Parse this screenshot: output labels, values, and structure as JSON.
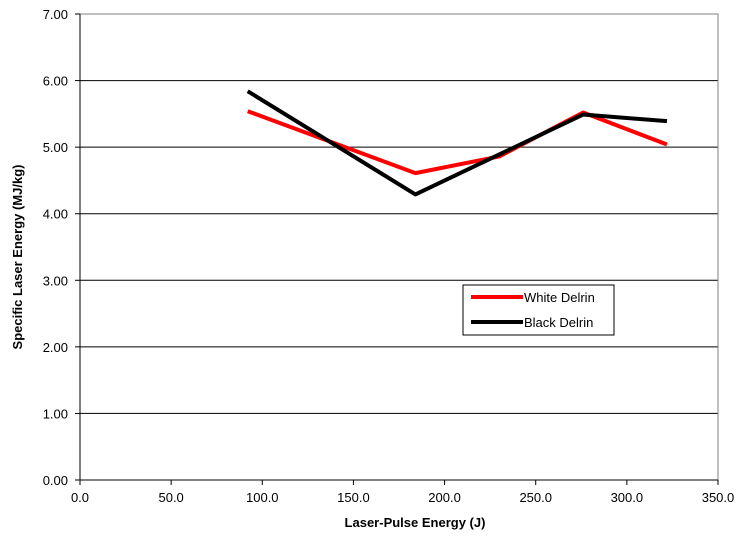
{
  "chart_data": {
    "type": "line",
    "title": "",
    "xlabel": "Laser-Pulse Energy (J)",
    "ylabel": "Specific Laser Energy (MJ/kg)",
    "xlim": [
      0,
      350
    ],
    "ylim": [
      0,
      7
    ],
    "x_ticks": [
      "0.0",
      "50.0",
      "100.0",
      "150.0",
      "200.0",
      "250.0",
      "300.0",
      "350.0"
    ],
    "y_ticks": [
      "0.00",
      "1.00",
      "2.00",
      "3.00",
      "4.00",
      "5.00",
      "6.00",
      "7.00"
    ],
    "x_tick_values": [
      0,
      50,
      100,
      150,
      200,
      250,
      300,
      350
    ],
    "y_tick_values": [
      0,
      1,
      2,
      3,
      4,
      5,
      6,
      7
    ],
    "grid": "horizontal",
    "legend_position": "right-middle",
    "series": [
      {
        "name": "White Delrin",
        "color": "#ff0000",
        "x": [
          92,
          184,
          230,
          276,
          322
        ],
        "y": [
          5.54,
          4.61,
          4.86,
          5.52,
          5.04
        ]
      },
      {
        "name": "Black Delrin",
        "color": "#000000",
        "x": [
          92,
          184,
          230,
          276,
          322
        ],
        "y": [
          5.84,
          4.29,
          4.89,
          5.49,
          5.39
        ]
      }
    ]
  }
}
